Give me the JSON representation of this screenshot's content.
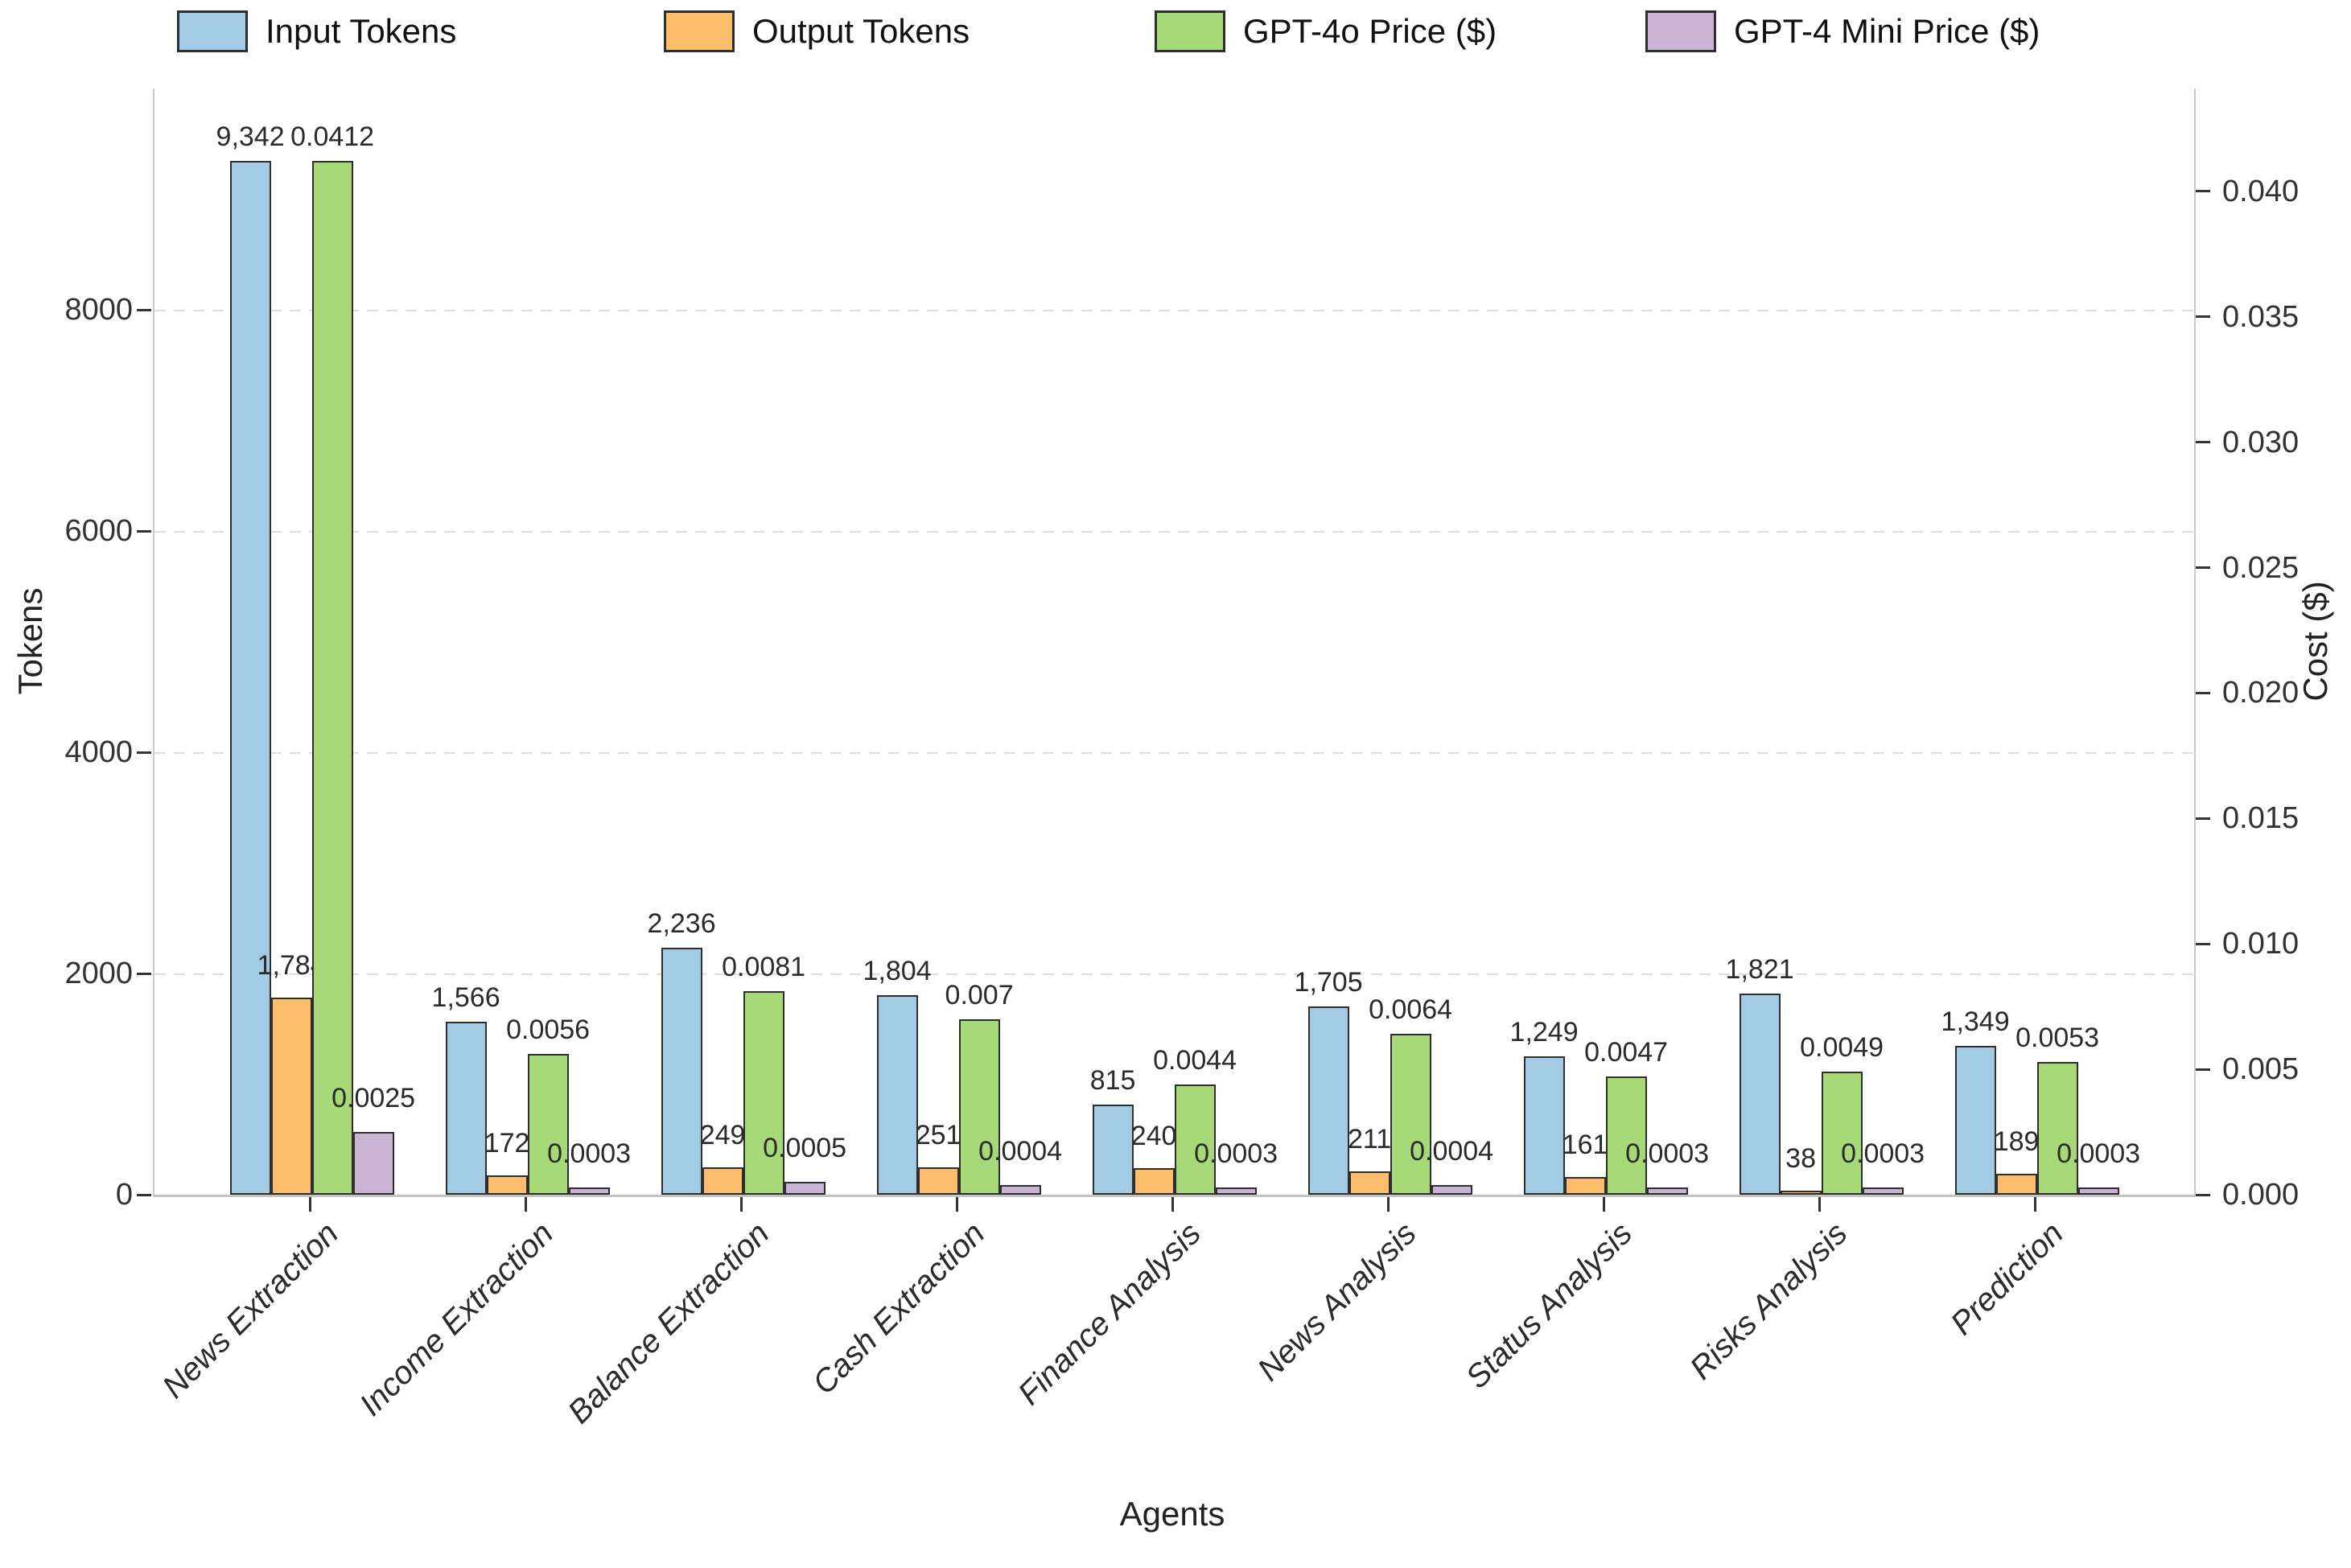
{
  "legend": [
    {
      "label": "Input Tokens",
      "color": "#a3cbe3",
      "x": 220
    },
    {
      "label": "Output Tokens",
      "color": "#fcbe6d",
      "x": 825
    },
    {
      "label": "GPT-4o Price ($)",
      "color": "#a8d978",
      "x": 1435
    },
    {
      "label": "GPT-4 Mini Price ($)",
      "color": "#c9b3d5",
      "x": 2045
    }
  ],
  "axes": {
    "left": {
      "title": "Tokens",
      "max": 10000,
      "ticks": [
        {
          "value": 0,
          "label": "0"
        },
        {
          "value": 2000,
          "label": "2000"
        },
        {
          "value": 4000,
          "label": "4000"
        },
        {
          "value": 6000,
          "label": "6000"
        },
        {
          "value": 8000,
          "label": "8000"
        }
      ]
    },
    "right": {
      "title": "Cost ($)",
      "max": 0.0441,
      "ticks": [
        {
          "value": 0.0,
          "label": "0.000"
        },
        {
          "value": 0.005,
          "label": "0.005"
        },
        {
          "value": 0.01,
          "label": "0.010"
        },
        {
          "value": 0.015,
          "label": "0.015"
        },
        {
          "value": 0.02,
          "label": "0.020"
        },
        {
          "value": 0.025,
          "label": "0.025"
        },
        {
          "value": 0.03,
          "label": "0.030"
        },
        {
          "value": 0.035,
          "label": "0.035"
        },
        {
          "value": 0.04,
          "label": "0.040"
        }
      ]
    },
    "x": {
      "title": "Agents"
    }
  },
  "chart_data": {
    "type": "bar",
    "categories": [
      "News Extraction",
      "Income Extraction",
      "Balance Extraction",
      "Cash Extraction",
      "Finance Analysis",
      "News Analysis",
      "Status Analysis",
      "Risks Analysis",
      "Prediction"
    ],
    "grid": "horizontal dashed at left-axis ticks 2000/4000/6000/8000",
    "legend_position": "top, horizontal, 4 entries",
    "ylim_left": [
      0,
      10000
    ],
    "ylim_right": [
      0,
      0.0441
    ],
    "xlabel": "Agents",
    "ylabel_left": "Tokens",
    "ylabel_right": "Cost ($)",
    "series": [
      {
        "name": "Input Tokens",
        "axis": "left",
        "color": "#a3cbe3",
        "values": [
          9342,
          1566,
          2236,
          1804,
          815,
          1705,
          1249,
          1821,
          1349
        ],
        "labels": [
          "9,342",
          "1,566",
          "2,236",
          "1,804",
          "815",
          "1,705",
          "1,249",
          "1,821",
          "1,349"
        ],
        "label_offset": 10
      },
      {
        "name": "Output Tokens",
        "axis": "left",
        "color": "#fcbe6d",
        "values": [
          1784,
          172,
          249,
          251,
          240,
          211,
          161,
          38,
          189
        ],
        "labels": [
          "1,784",
          "172",
          "249",
          "251",
          "240",
          "211",
          "161",
          "38",
          "189"
        ],
        "label_offset": 20
      },
      {
        "name": "GPT-4o Price ($)",
        "axis": "right",
        "color": "#a8d978",
        "values": [
          0.0412,
          0.0056,
          0.0081,
          0.007,
          0.0044,
          0.0064,
          0.0047,
          0.0049,
          0.0053
        ],
        "labels": [
          "0.0412",
          "0.0056",
          "0.0081",
          "0.007",
          "0.0044",
          "0.0064",
          "0.0047",
          "0.0049",
          "0.0053"
        ],
        "label_offset": 10
      },
      {
        "name": "GPT-4 Mini Price ($)",
        "axis": "right",
        "color": "#c9b3d5",
        "values": [
          0.0025,
          0.0003,
          0.0005,
          0.0004,
          0.0003,
          0.0004,
          0.0003,
          0.0003,
          0.0003
        ],
        "labels": [
          "0.0025",
          "0.0003",
          "0.0005",
          "0.0004",
          "0.0003",
          "0.0004",
          "0.0003",
          "0.0003",
          "0.0003"
        ],
        "label_offset": 22
      }
    ]
  }
}
